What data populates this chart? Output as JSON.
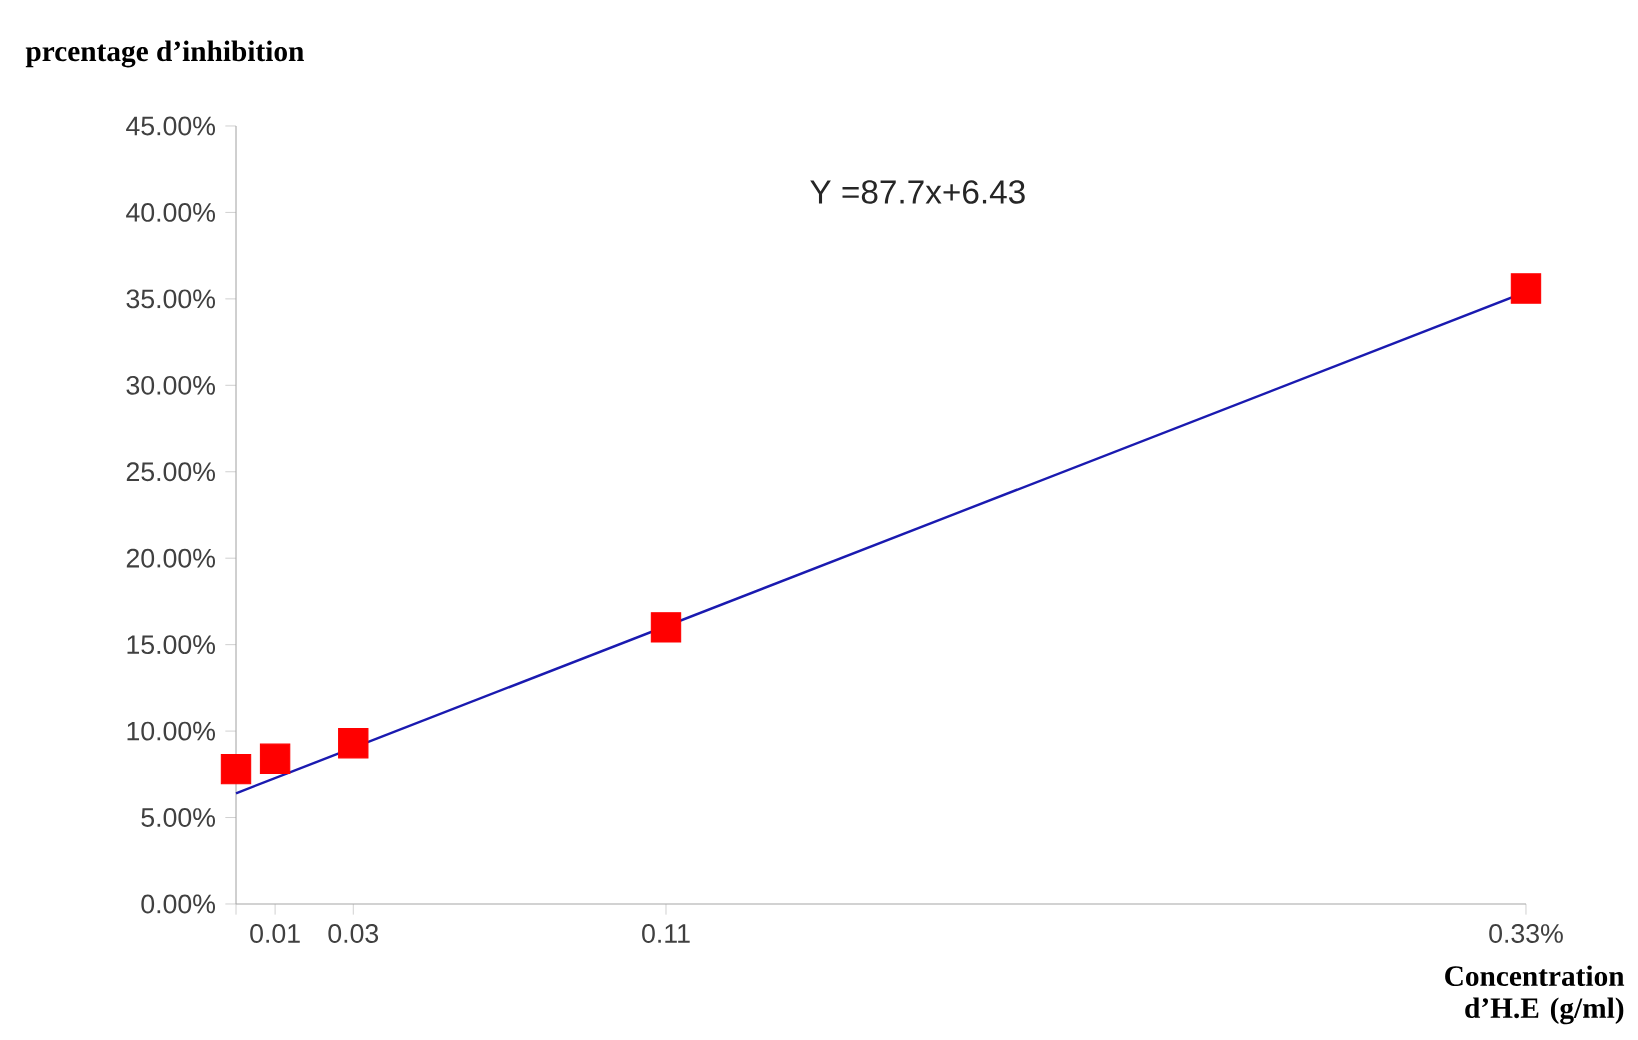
{
  "chart_data": {
    "type": "scatter",
    "xlabel": "Concentration d’H.E (g/ml)",
    "ylabel": "prcentage d’inhibition",
    "annotations": [
      "Y =87.7x+6.43"
    ],
    "series": [
      {
        "marker": "square",
        "color": "#ff0000",
        "x": [
          0,
          0.01,
          0.03,
          0.11,
          0.33
        ],
        "values": [
          7.8,
          8.4,
          9.3,
          16.0,
          35.6
        ]
      },
      {
        "type": "line",
        "marker": "none",
        "color": "#1a1ab0",
        "x": [
          0,
          0.33
        ],
        "values": [
          6.4,
          35.4
        ]
      }
    ],
    "grid": false,
    "xlim": [
      0,
      0.33
    ],
    "ylim": [
      0,
      45
    ],
    "xticks": [
      {
        "value": 0,
        "label": null
      },
      0.01,
      0.03,
      0.11,
      {
        "value": 0.33,
        "label": "0.33%"
      }
    ],
    "yticks": [
      {
        "value": 0,
        "label": "0.00%"
      },
      {
        "value": 5,
        "label": "5.00%"
      },
      {
        "value": 10,
        "label": "10.00%"
      },
      {
        "value": 15,
        "label": "15.00%"
      },
      {
        "value": 20,
        "label": "20.00%"
      },
      {
        "value": 25,
        "label": "25.00%"
      },
      {
        "value": 30,
        "label": "30.00%"
      },
      {
        "value": 35,
        "label": "35.00%"
      },
      {
        "value": 40,
        "label": "40.00%"
      },
      {
        "value": 45,
        "label": "45.00%"
      }
    ]
  }
}
